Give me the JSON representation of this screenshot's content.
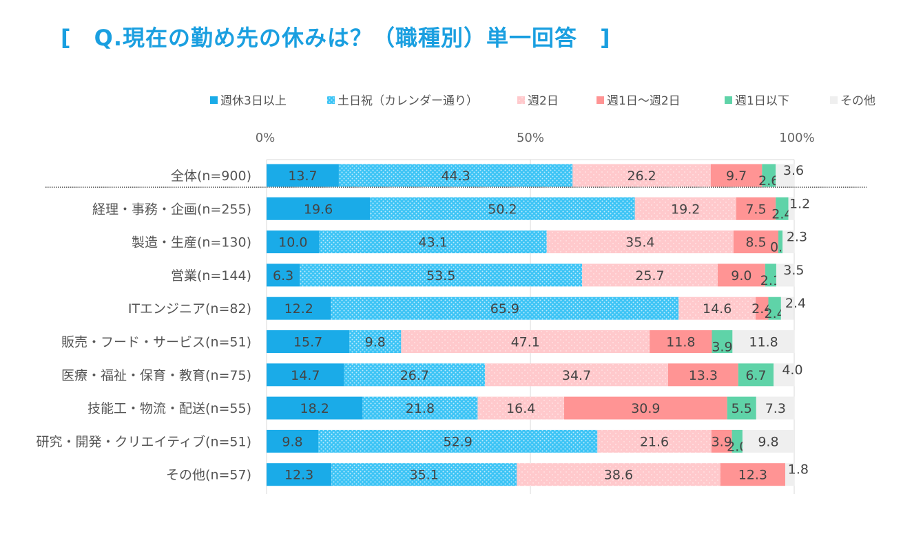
{
  "title": "[　Q.現在の勤め先の休みは？（職種別）単一回答　]",
  "chart_data": {
    "type": "bar",
    "orientation": "horizontal",
    "stacked": "percent",
    "title": "Q.現在の勤め先の休みは？（職種別）単一回答",
    "xlabel": "",
    "ylabel": "",
    "xlim": [
      0,
      100
    ],
    "x_ticks": [
      "0%",
      "50%",
      "100%"
    ],
    "legend_position": "top-right",
    "categories": [
      "全体(n=900)",
      "経理・事務・企画(n=255)",
      "製造・生産(n=130)",
      "営業(n=144)",
      "ITエンジニア(n=82)",
      "販売・フード・サービス(n=51)",
      "医療・福祉・保育・教育(n=75)",
      "技能工・物流・配送(n=55)",
      "研究・開発・クリエイティブ(n=51)",
      "その他(n=57)"
    ],
    "series": [
      {
        "name": "週休3日以上",
        "color": "#1aabe8",
        "pattern": "solid",
        "values": [
          13.7,
          19.6,
          10.0,
          6.3,
          12.2,
          15.7,
          14.7,
          18.2,
          9.8,
          12.3
        ]
      },
      {
        "name": "土日祝（カレンダー通り）",
        "color": "#3cc4f5",
        "pattern": "dots",
        "values": [
          44.3,
          50.2,
          43.1,
          53.5,
          65.9,
          9.8,
          26.7,
          21.8,
          52.9,
          35.1
        ]
      },
      {
        "name": "週2日",
        "color": "#ffc9cc",
        "pattern": "dots",
        "values": [
          26.2,
          19.2,
          35.4,
          25.7,
          14.6,
          47.1,
          34.7,
          16.4,
          21.6,
          38.6
        ]
      },
      {
        "name": "週1日～週2日",
        "color": "#ff9494",
        "pattern": "solid",
        "values": [
          9.7,
          7.5,
          8.5,
          9.0,
          2.4,
          11.8,
          13.3,
          30.9,
          3.9,
          12.3
        ]
      },
      {
        "name": "週1日以下",
        "color": "#5fd3a8",
        "pattern": "solid",
        "values": [
          2.6,
          2.4,
          0.8,
          2.1,
          2.4,
          3.9,
          6.7,
          5.5,
          2.0,
          0.0
        ]
      },
      {
        "name": "その他",
        "color": "#efefef",
        "pattern": "solid",
        "values": [
          3.6,
          1.2,
          2.3,
          3.5,
          2.4,
          11.8,
          4.0,
          7.3,
          9.8,
          1.8
        ]
      }
    ],
    "data_labels": [
      [
        "13.7",
        "44.3",
        "26.2",
        "9.7",
        "2.6",
        "3.6"
      ],
      [
        "19.6",
        "50.2",
        "19.2",
        "7.5",
        "2.4",
        "1.2"
      ],
      [
        "10.0",
        "43.1",
        "35.4",
        "8.5",
        "0.8",
        "2.3"
      ],
      [
        "6.3",
        "53.5",
        "25.7",
        "9.0",
        "2.1",
        "3.5"
      ],
      [
        "12.2",
        "65.9",
        "14.6",
        "2.4",
        "2.4",
        "2.4"
      ],
      [
        "15.7",
        "9.8",
        "47.1",
        "11.8",
        "3.9",
        "11.8"
      ],
      [
        "14.7",
        "26.7",
        "34.7",
        "13.3",
        "6.7",
        "4.0"
      ],
      [
        "18.2",
        "21.8",
        "16.4",
        "30.9",
        "5.5",
        "7.3"
      ],
      [
        "9.8",
        "52.9",
        "21.6",
        "3.9",
        "2.0",
        "9.8"
      ],
      [
        "12.3",
        "35.1",
        "38.6",
        "12.3",
        "",
        "1.8"
      ]
    ],
    "separator_after_category": "全体(n=900)"
  }
}
